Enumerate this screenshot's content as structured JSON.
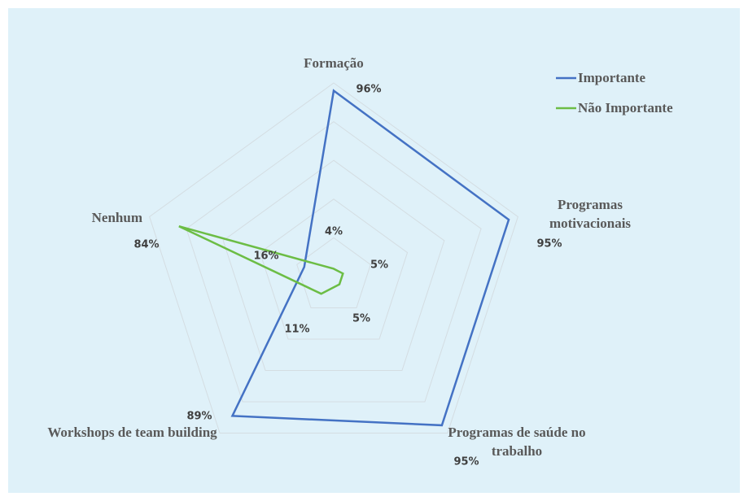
{
  "chart_data": {
    "type": "radar",
    "categories": [
      "Formação",
      "Programas motivacionais",
      "Programas de saúde no trabalho",
      "Workshops de team building",
      "Nenhum"
    ],
    "series": [
      {
        "name": "Importante",
        "color": "#4472c4",
        "values": [
          96,
          95,
          95,
          89,
          16
        ],
        "value_labels": [
          "96%",
          "95%",
          "95%",
          "89%",
          "16%"
        ]
      },
      {
        "name": "Não Importante",
        "color": "#6cbd45",
        "values": [
          4,
          5,
          5,
          11,
          84
        ],
        "value_labels": [
          "4%",
          "5%",
          "5%",
          "11%",
          "84%"
        ]
      }
    ],
    "ylim": [
      0,
      100
    ],
    "yticks": [
      0,
      20,
      40,
      60,
      80,
      100
    ],
    "grid": true,
    "legend": "top-right"
  }
}
